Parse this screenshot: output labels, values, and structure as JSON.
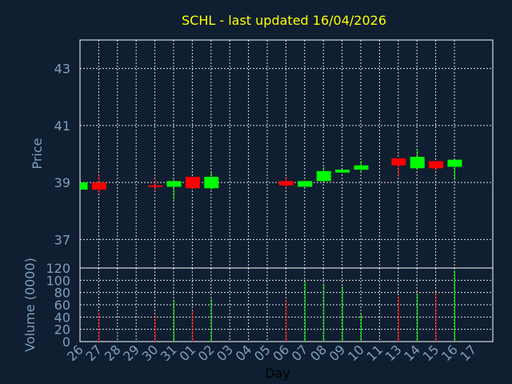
{
  "chart_data": [
    {
      "type": "candlestick",
      "title": "SCHL - last updated 16/04/2026",
      "ylabel": "Price",
      "ylim": [
        36,
        44
      ],
      "yticks": [
        37,
        39,
        41,
        43
      ],
      "grid": true,
      "colors": {
        "up": "#00ff00",
        "down": "#ff0000",
        "background": "#0f1e30",
        "text": "#7f9fbf",
        "title": "#ffff00"
      },
      "candles": [
        {
          "day": "26",
          "open": 38.75,
          "close": 39.0,
          "high": 39.0,
          "low": 38.75
        },
        {
          "day": "27",
          "open": 39.0,
          "close": 38.75,
          "high": 39.3,
          "low": 38.6
        },
        {
          "day": "30",
          "open": 38.9,
          "close": 38.85,
          "high": 39.1,
          "low": 38.7
        },
        {
          "day": "31",
          "open": 38.85,
          "close": 39.05,
          "high": 39.1,
          "low": 38.4
        },
        {
          "day": "01",
          "open": 39.2,
          "close": 38.8,
          "high": 39.2,
          "low": 38.8
        },
        {
          "day": "02",
          "open": 38.8,
          "close": 39.2,
          "high": 39.4,
          "low": 38.75
        },
        {
          "day": "06",
          "open": 39.05,
          "close": 38.9,
          "high": 39.2,
          "low": 38.8
        },
        {
          "day": "07",
          "open": 38.85,
          "close": 39.05,
          "high": 39.05,
          "low": 38.85
        },
        {
          "day": "08",
          "open": 39.05,
          "close": 39.4,
          "high": 39.55,
          "low": 39.05
        },
        {
          "day": "09",
          "open": 39.35,
          "close": 39.45,
          "high": 39.45,
          "low": 39.35
        },
        {
          "day": "10",
          "open": 39.45,
          "close": 39.6,
          "high": 39.75,
          "low": 39.35
        },
        {
          "day": "13",
          "open": 39.85,
          "close": 39.6,
          "high": 39.85,
          "low": 39.2
        },
        {
          "day": "14",
          "open": 39.5,
          "close": 39.9,
          "high": 40.15,
          "low": 39.45
        },
        {
          "day": "15",
          "open": 39.75,
          "close": 39.5,
          "high": 39.75,
          "low": 39.4
        },
        {
          "day": "16",
          "open": 39.55,
          "close": 39.8,
          "high": 39.8,
          "low": 39.1
        }
      ]
    },
    {
      "type": "bar",
      "ylabel": "Volume (0000)",
      "xlabel": "Day",
      "ylim": [
        0,
        120
      ],
      "yticks": [
        0,
        20,
        40,
        60,
        80,
        100,
        120
      ],
      "grid": true,
      "categories": [
        "26",
        "27",
        "28",
        "29",
        "30",
        "31",
        "01",
        "02",
        "03",
        "04",
        "05",
        "06",
        "07",
        "08",
        "09",
        "10",
        "11",
        "13",
        "14",
        "15",
        "16",
        "17"
      ],
      "values": [
        {
          "day": "27",
          "value": 47,
          "color": "#ff0000"
        },
        {
          "day": "30",
          "value": 43,
          "color": "#ff0000"
        },
        {
          "day": "31",
          "value": 68,
          "color": "#00ff00"
        },
        {
          "day": "01",
          "value": 50,
          "color": "#ff0000"
        },
        {
          "day": "02",
          "value": 70,
          "color": "#00ff00"
        },
        {
          "day": "06",
          "value": 68,
          "color": "#ff0000"
        },
        {
          "day": "07",
          "value": 98,
          "color": "#00ff00"
        },
        {
          "day": "08",
          "value": 95,
          "color": "#00ff00"
        },
        {
          "day": "09",
          "value": 90,
          "color": "#00ff00"
        },
        {
          "day": "10",
          "value": 45,
          "color": "#00ff00"
        },
        {
          "day": "13",
          "value": 73,
          "color": "#ff0000"
        },
        {
          "day": "14",
          "value": 77,
          "color": "#00ff00"
        },
        {
          "day": "15",
          "value": 80,
          "color": "#ff0000"
        },
        {
          "day": "16",
          "value": 116,
          "color": "#00ff00"
        }
      ]
    }
  ]
}
